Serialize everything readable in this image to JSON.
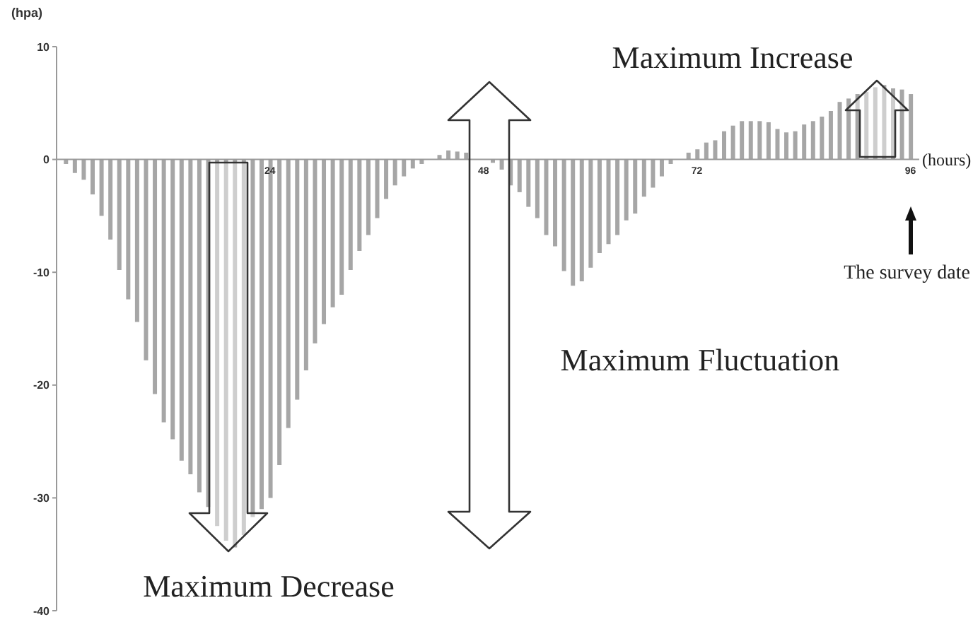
{
  "chart_data": {
    "type": "bar",
    "xlabel": "(hours)",
    "ylabel": "(hpa)",
    "x": [
      1,
      2,
      3,
      4,
      5,
      6,
      7,
      8,
      9,
      10,
      11,
      12,
      13,
      14,
      15,
      16,
      17,
      18,
      19,
      20,
      21,
      22,
      23,
      24,
      25,
      26,
      27,
      28,
      29,
      30,
      31,
      32,
      33,
      34,
      35,
      36,
      37,
      38,
      39,
      40,
      41,
      42,
      43,
      44,
      45,
      46,
      47,
      48,
      49,
      50,
      51,
      52,
      53,
      54,
      55,
      56,
      57,
      58,
      59,
      60,
      61,
      62,
      63,
      64,
      65,
      66,
      67,
      68,
      69,
      70,
      71,
      72,
      73,
      74,
      75,
      76,
      77,
      78,
      79,
      80,
      81,
      82,
      83,
      84,
      85,
      86,
      87,
      88,
      89,
      90,
      91,
      92,
      93,
      94,
      95,
      96
    ],
    "values": [
      -0.4,
      -1.2,
      -1.8,
      -3.1,
      -5.0,
      -7.1,
      -9.8,
      -12.4,
      -14.4,
      -17.8,
      -20.8,
      -23.3,
      -24.8,
      -26.7,
      -27.9,
      -29.5,
      -30.8,
      -32.5,
      -33.8,
      -34.4,
      -33.3,
      -31.7,
      -31.0,
      -30.0,
      -27.1,
      -23.8,
      -21.3,
      -18.7,
      -16.3,
      -14.6,
      -13.1,
      -12.0,
      -9.8,
      -8.1,
      -6.7,
      -5.2,
      -3.5,
      -2.3,
      -1.5,
      -0.8,
      -0.4,
      0,
      0.4,
      0.8,
      0.7,
      0.6,
      0,
      0,
      -0.3,
      -0.9,
      -2.3,
      -2.9,
      -4.2,
      -5.2,
      -6.7,
      -7.7,
      -9.9,
      -11.2,
      -10.8,
      -9.6,
      -8.3,
      -7.5,
      -6.7,
      -5.4,
      -4.8,
      -3.3,
      -2.5,
      -1.5,
      -0.4,
      0,
      0.6,
      0.9,
      1.5,
      1.7,
      2.5,
      3.0,
      3.4,
      3.4,
      3.4,
      3.3,
      2.7,
      2.4,
      2.5,
      3.1,
      3.4,
      3.8,
      4.3,
      5.1,
      5.4,
      5.8,
      6.0,
      6.4,
      6.6,
      6.3,
      6.2,
      5.8
    ],
    "color": "#a6a6a6",
    "xlim": [
      0,
      97
    ],
    "xticks": [
      24,
      48,
      72,
      96
    ],
    "ylim": [
      -40,
      10
    ],
    "yticks": [
      10,
      0,
      -10,
      -20,
      -30,
      -40
    ],
    "annotations": [
      "Maximum Increase",
      "Maximum Decrease",
      "Maximum Fluctuation",
      "The survey date"
    ]
  }
}
